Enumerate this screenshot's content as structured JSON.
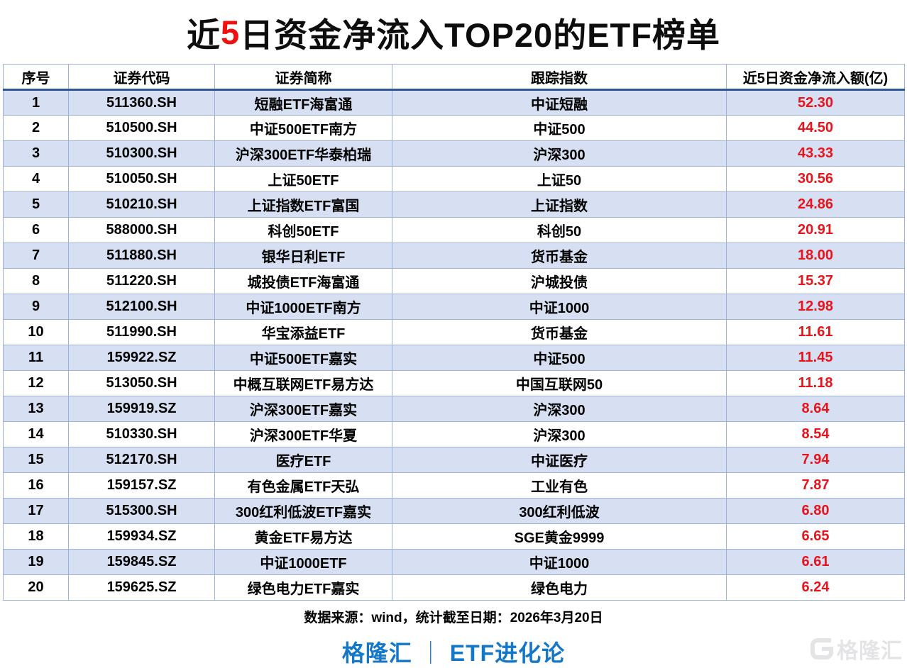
{
  "title": {
    "prefix": "近",
    "highlight": "5",
    "suffix": "日资金净流入TOP20的ETF榜单"
  },
  "chart_data": {
    "type": "table",
    "title": "近5日资金净流入TOP20的ETF榜单",
    "columns": [
      "序号",
      "证券代码",
      "证券简称",
      "跟踪指数",
      "近5日资金净流入额(亿)"
    ],
    "rows": [
      {
        "rank": "1",
        "code": "511360.SH",
        "name": "短融ETF海富通",
        "index": "中证短融",
        "inflow": "52.30"
      },
      {
        "rank": "2",
        "code": "510500.SH",
        "name": "中证500ETF南方",
        "index": "中证500",
        "inflow": "44.50"
      },
      {
        "rank": "3",
        "code": "510300.SH",
        "name": "沪深300ETF华泰柏瑞",
        "index": "沪深300",
        "inflow": "43.33"
      },
      {
        "rank": "4",
        "code": "510050.SH",
        "name": "上证50ETF",
        "index": "上证50",
        "inflow": "30.56"
      },
      {
        "rank": "5",
        "code": "510210.SH",
        "name": "上证指数ETF富国",
        "index": "上证指数",
        "inflow": "24.86"
      },
      {
        "rank": "6",
        "code": "588000.SH",
        "name": "科创50ETF",
        "index": "科创50",
        "inflow": "20.91"
      },
      {
        "rank": "7",
        "code": "511880.SH",
        "name": "银华日利ETF",
        "index": "货币基金",
        "inflow": "18.00"
      },
      {
        "rank": "8",
        "code": "511220.SH",
        "name": "城投债ETF海富通",
        "index": "沪城投债",
        "inflow": "15.37"
      },
      {
        "rank": "9",
        "code": "512100.SH",
        "name": "中证1000ETF南方",
        "index": "中证1000",
        "inflow": "12.98"
      },
      {
        "rank": "10",
        "code": "511990.SH",
        "name": "华宝添益ETF",
        "index": "货币基金",
        "inflow": "11.61"
      },
      {
        "rank": "11",
        "code": "159922.SZ",
        "name": "中证500ETF嘉实",
        "index": "中证500",
        "inflow": "11.45"
      },
      {
        "rank": "12",
        "code": "513050.SH",
        "name": "中概互联网ETF易方达",
        "index": "中国互联网50",
        "inflow": "11.18"
      },
      {
        "rank": "13",
        "code": "159919.SZ",
        "name": "沪深300ETF嘉实",
        "index": "沪深300",
        "inflow": "8.64"
      },
      {
        "rank": "14",
        "code": "510330.SH",
        "name": "沪深300ETF华夏",
        "index": "沪深300",
        "inflow": "8.54"
      },
      {
        "rank": "15",
        "code": "512170.SH",
        "name": "医疗ETF",
        "index": "中证医疗",
        "inflow": "7.94"
      },
      {
        "rank": "16",
        "code": "159157.SZ",
        "name": "有色金属ETF天弘",
        "index": "工业有色",
        "inflow": "7.87"
      },
      {
        "rank": "17",
        "code": "515300.SH",
        "name": "300红利低波ETF嘉实",
        "index": "300红利低波",
        "inflow": "6.80"
      },
      {
        "rank": "18",
        "code": "159934.SZ",
        "name": "黄金ETF易方达",
        "index": "SGE黄金9999",
        "inflow": "6.65"
      },
      {
        "rank": "19",
        "code": "159845.SZ",
        "name": "中证1000ETF",
        "index": "中证1000",
        "inflow": "6.61"
      },
      {
        "rank": "20",
        "code": "159625.SZ",
        "name": "绿色电力ETF嘉实",
        "index": "绿色电力",
        "inflow": "6.24"
      }
    ]
  },
  "footer": {
    "source_note": "数据来源：wind，统计截至日期：2026年3月20日",
    "brand": "格隆汇",
    "divider": "｜",
    "series": "ETF进化论",
    "watermark_text": "格隆汇"
  },
  "colors": {
    "highlight_red": "#ee1111",
    "value_red": "#e8141c",
    "row_alt_blue": "#d7e0f2",
    "cell_border": "#9db1d4",
    "header_bottom_border": "#2e5596",
    "brand_blue": "#1577c8"
  }
}
